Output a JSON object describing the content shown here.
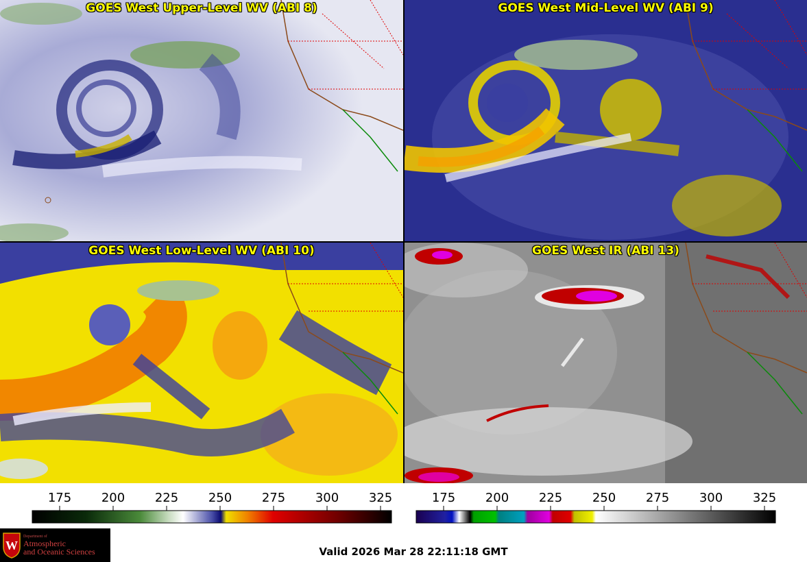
{
  "panels": [
    {
      "title": "GOES West Upper-Level WV (ABI 8)",
      "palette": "wv"
    },
    {
      "title": "GOES West Mid-Level WV (ABI 9)",
      "palette": "wv"
    },
    {
      "title": "GOES West Low-Level WV (ABI 10)",
      "palette": "wv"
    },
    {
      "title": "GOES West IR (ABI 13)",
      "palette": "ir"
    }
  ],
  "colorbars": [
    {
      "name": "water-vapor",
      "ticks": [
        "175",
        "200",
        "225",
        "250",
        "275",
        "300",
        "325"
      ]
    },
    {
      "name": "infrared",
      "ticks": [
        "175",
        "200",
        "225",
        "250",
        "275",
        "300",
        "325"
      ]
    }
  ],
  "logo": {
    "dept_line1": "Department of",
    "dept_line2": "Atmospheric",
    "dept_line3": "and Oceanic Sciences"
  },
  "valid_time": "Valid 2026 Mar 28 22:11:18 GMT",
  "colors": {
    "border_coast": "#8b4a1a",
    "state_lines": "#e00000",
    "title_text": "#ffff00",
    "mexico_coast": "#0a8a0a"
  }
}
